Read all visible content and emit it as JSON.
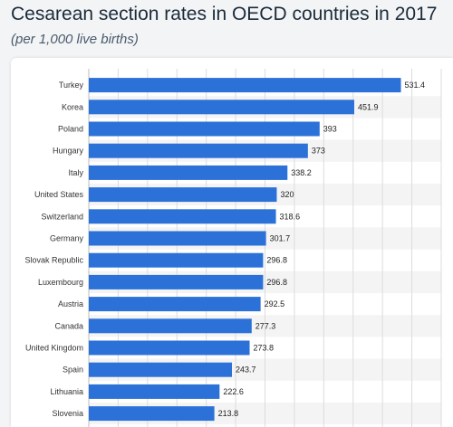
{
  "chart_data": {
    "type": "bar",
    "orientation": "horizontal",
    "title": "Cesarean section rates in OECD countries in 2017",
    "subtitle": "(per 1,000 live births)",
    "categories": [
      "Turkey",
      "Korea",
      "Poland",
      "Hungary",
      "Italy",
      "United States",
      "Switzerland",
      "Germany",
      "Slovak Republic",
      "Luxembourg",
      "Austria",
      "Canada",
      "United Kingdom",
      "Spain",
      "Lithuania",
      "Slovenia"
    ],
    "values": [
      531.4,
      451.9,
      393,
      373,
      338.2,
      320,
      318.6,
      301.7,
      296.8,
      296.8,
      292.5,
      277.3,
      273.8,
      243.7,
      222.6,
      213.8
    ],
    "value_labels": [
      "531.4",
      "451.9",
      "393",
      "373",
      "338.2",
      "320",
      "318.6",
      "301.7",
      "296.8",
      "296.8",
      "292.5",
      "277.3",
      "273.8",
      "243.7",
      "222.6",
      "213.8"
    ],
    "xlim": [
      0,
      600
    ],
    "grid": true,
    "colors": {
      "bar": "#2b71d8",
      "stripe": "#f4f4f4",
      "grid": "#dcdcdc"
    }
  }
}
